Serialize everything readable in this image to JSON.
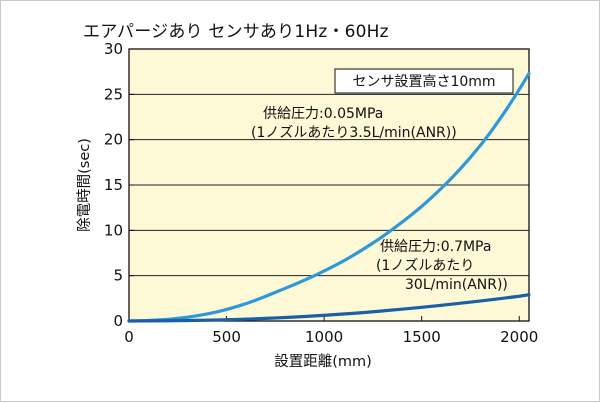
{
  "title": "エアパージあり センサあり1Hz・60Hz",
  "colors": {
    "plot_background": "#fdf8d6",
    "axis": "#111111",
    "gridline": "#222222",
    "series_low_pressure": "#2f98d8",
    "series_high_pressure": "#1b5fa6"
  },
  "chart_data": {
    "type": "line",
    "xlabel": "設置距離(mm)",
    "ylabel": "除電時間(sec)",
    "xlim": [
      0,
      2050
    ],
    "ylim": [
      0,
      30
    ],
    "xticks": [
      0,
      500,
      1000,
      1500,
      2000
    ],
    "yticks": [
      0,
      5,
      10,
      15,
      20,
      25,
      30
    ],
    "grid": "horizontal",
    "note": "センサ設置高さ10mm",
    "series": [
      {
        "name_lines": [
          "供給圧力:0.05MPa",
          "(1ノズルあたり3.5L/min(ANR))"
        ],
        "x": [
          0,
          100,
          200,
          300,
          400,
          500,
          600,
          700,
          800,
          900,
          1000,
          1100,
          1200,
          1300,
          1400,
          1500,
          1600,
          1700,
          1800,
          1900,
          2000,
          2050
        ],
        "y": [
          0,
          0.05,
          0.17,
          0.4,
          0.76,
          1.25,
          1.9,
          2.7,
          3.6,
          4.5,
          5.5,
          6.6,
          7.9,
          9.3,
          10.9,
          12.6,
          14.6,
          16.8,
          19.3,
          22.2,
          25.5,
          27.3
        ]
      },
      {
        "name_lines": [
          "供給圧力:0.7MPa",
          "(1ノズルあたり",
          "30L/min(ANR))"
        ],
        "x": [
          0,
          200,
          400,
          600,
          800,
          1000,
          1200,
          1400,
          1600,
          1800,
          2000,
          2050
        ],
        "y": [
          0,
          0.02,
          0.08,
          0.2,
          0.38,
          0.62,
          0.92,
          1.3,
          1.72,
          2.2,
          2.72,
          2.9
        ]
      }
    ]
  }
}
